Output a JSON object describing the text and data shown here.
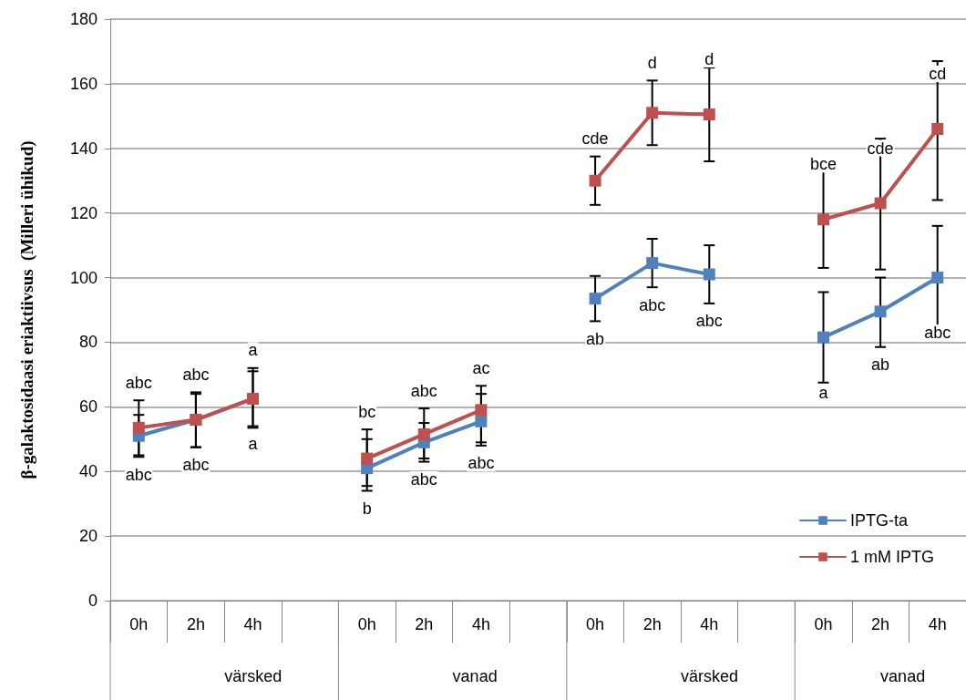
{
  "chart_data": {
    "type": "line",
    "ylabel": "β-galaktosidaasi eriaktiivsus  (Milleri ühikud)",
    "categories": [
      "0h",
      "2h",
      "4h",
      null,
      "0h",
      "2h",
      "4h",
      null,
      "0h",
      "2h",
      "4h",
      null,
      "0h",
      "2h",
      "4h"
    ],
    "annotations": [
      "värsked",
      "vanad",
      "värsked",
      "vanad"
    ],
    "series": [
      {
        "name": "IPTG-ta",
        "color": "#4f81bd",
        "values": [
          51,
          56,
          62.5,
          null,
          41,
          49,
          55.5,
          null,
          93.5,
          104.5,
          101,
          null,
          81.5,
          89.5,
          100
        ],
        "errors": [
          [
            44.5,
            57.5
          ],
          [
            47.5,
            64
          ],
          [
            54,
            71
          ],
          null,
          [
            34,
            50
          ],
          [
            43,
            55
          ],
          [
            48,
            64
          ],
          null,
          [
            86.5,
            100.5
          ],
          [
            97,
            112
          ],
          [
            92,
            110
          ],
          null,
          [
            67.5,
            95.5
          ],
          [
            78.5,
            100
          ],
          [
            84,
            116
          ]
        ],
        "value_labels": [
          "abc",
          "abc",
          "a",
          null,
          "b",
          "abc",
          "abc",
          null,
          "ab",
          "abc",
          "abc",
          null,
          "a",
          "ab",
          "abc"
        ]
      },
      {
        "name": "1 mM IPTG",
        "color": "#c0504d",
        "values": [
          53.5,
          56,
          62.5,
          null,
          44,
          51.5,
          59,
          null,
          130,
          151,
          150.5,
          null,
          118,
          123,
          146
        ],
        "errors": [
          [
            45,
            62
          ],
          [
            47.5,
            64.5
          ],
          [
            53.5,
            72
          ],
          null,
          [
            35.5,
            53
          ],
          [
            44,
            59.5
          ],
          [
            49,
            66.5
          ],
          null,
          [
            122.5,
            137.5
          ],
          [
            141,
            161
          ],
          [
            136,
            165
          ],
          null,
          [
            103,
            133
          ],
          [
            102.5,
            143
          ],
          [
            124,
            167
          ]
        ],
        "value_labels": [
          "abc",
          "abc",
          "a",
          null,
          "bc",
          "abc",
          "ac",
          null,
          "cde",
          "d",
          "d",
          null,
          "bce",
          "cde",
          "cd"
        ]
      }
    ],
    "ylim": [
      0,
      180
    ],
    "yticks": [
      0,
      20,
      40,
      60,
      80,
      100,
      120,
      140,
      160,
      180
    ],
    "grid": "y",
    "legend": "bottom right",
    "marker": "square",
    "line_style": "solid"
  }
}
